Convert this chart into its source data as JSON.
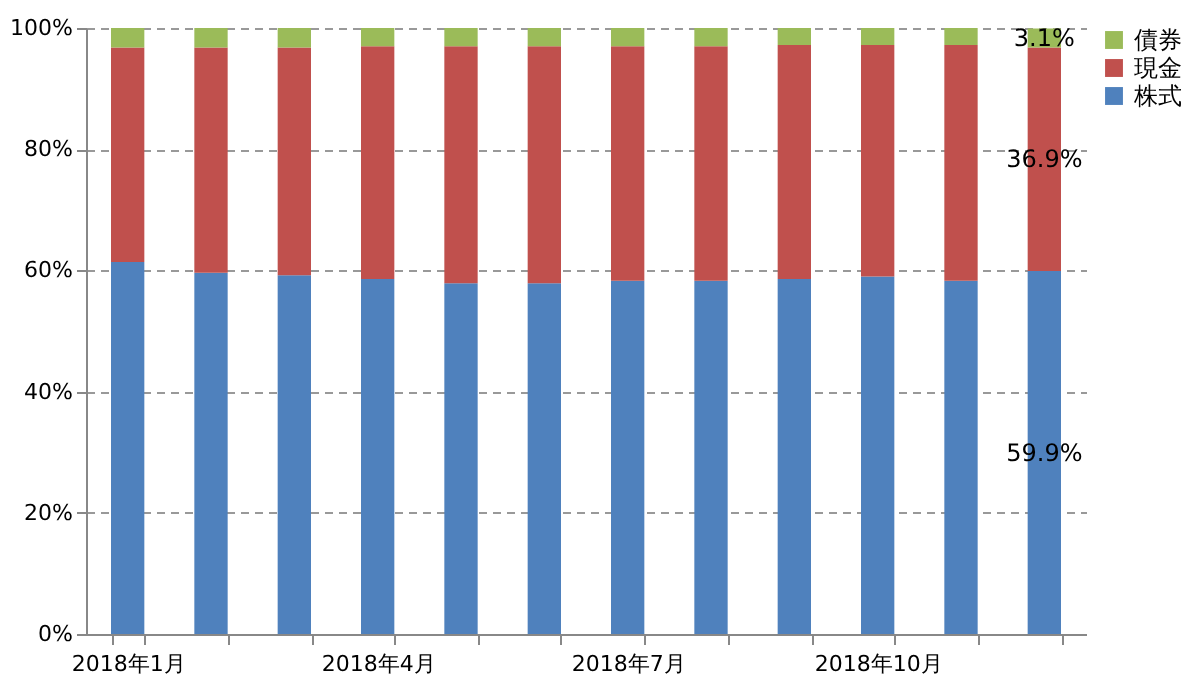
{
  "chart_data": {
    "type": "bar",
    "stacked": true,
    "categories": [
      "2018年1月",
      null,
      null,
      "2018年4月",
      null,
      null,
      "2018年7月",
      null,
      null,
      "2018年10月",
      null,
      null
    ],
    "series": [
      {
        "name": "株式",
        "color": "#4f81bd",
        "values": [
          61.4,
          59.6,
          59.2,
          58.6,
          57.9,
          57.9,
          58.3,
          58.3,
          58.6,
          59.0,
          58.3,
          59.9
        ],
        "value_labels": [
          null,
          null,
          null,
          null,
          null,
          null,
          null,
          null,
          null,
          null,
          null,
          "59.9%"
        ]
      },
      {
        "name": "現金",
        "color": "#c0504d",
        "values": [
          35.4,
          37.2,
          37.6,
          38.4,
          39.1,
          39.1,
          38.7,
          38.7,
          38.6,
          38.2,
          38.9,
          36.9
        ],
        "value_labels": [
          null,
          null,
          null,
          null,
          null,
          null,
          null,
          null,
          null,
          null,
          null,
          "36.9%"
        ]
      },
      {
        "name": "債券",
        "color": "#9bbb59",
        "values": [
          3.2,
          3.2,
          3.2,
          3.0,
          3.0,
          3.0,
          3.0,
          3.0,
          2.8,
          2.8,
          2.8,
          3.1
        ],
        "value_labels": [
          null,
          null,
          null,
          null,
          null,
          null,
          null,
          null,
          null,
          null,
          null,
          "3.1%"
        ]
      }
    ],
    "ylim": [
      0,
      100
    ],
    "yticks": [
      {
        "value": 0,
        "label": "0%"
      },
      {
        "value": 20,
        "label": "20%"
      },
      {
        "value": 40,
        "label": "40%"
      },
      {
        "value": 60,
        "label": "60%"
      },
      {
        "value": 80,
        "label": "80%"
      },
      {
        "value": 100,
        "label": "100%"
      }
    ],
    "grid": "y",
    "legend": "right"
  }
}
